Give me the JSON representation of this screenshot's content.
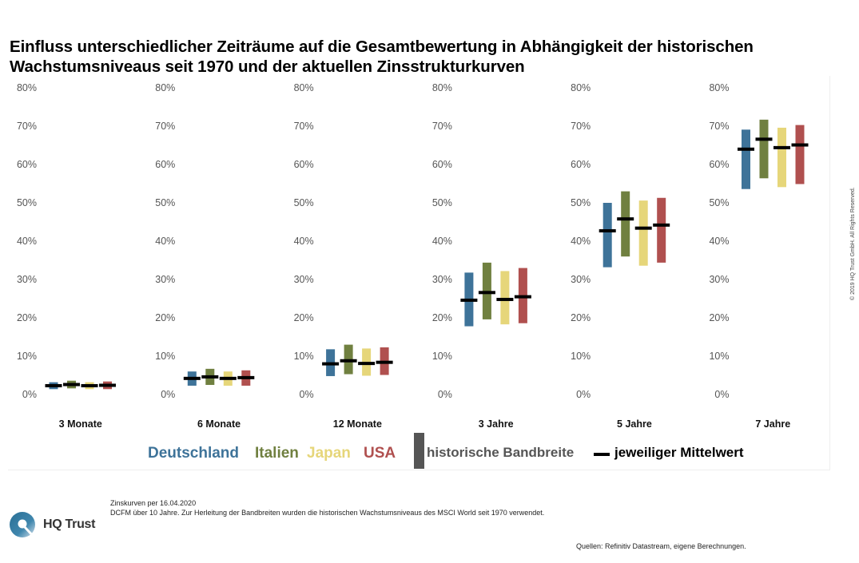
{
  "title": {
    "line1": "Einfluss unterschiedlicher Zeiträume auf die Gesamtbewertung in Abhängigkeit der historischen",
    "line2": "Wachstumsniveaus seit 1970 und der aktuellen Zinsstrukturkurven"
  },
  "colors": {
    "Deutschland": "#3e7399",
    "Italien": "#708040",
    "Japan": "#e6d67a",
    "USA": "#b0504f",
    "band_legend": "#555555",
    "mean": "#000000"
  },
  "chart_data": {
    "type": "range-bar",
    "title": "Einfluss unterschiedlicher Zeiträume auf die Gesamtbewertung in Abhängigkeit der historischen Wachstumsniveaus seit 1970 und der aktuellen Zinsstrukturkurven",
    "ylim": [
      0,
      80
    ],
    "y_ticks": [
      "0%",
      "10%",
      "20%",
      "30%",
      "40%",
      "50%",
      "60%",
      "70%",
      "80%"
    ],
    "y_tick_values": [
      0,
      10,
      20,
      30,
      40,
      50,
      60,
      70,
      80
    ],
    "grid": false,
    "series_names": [
      "Deutschland",
      "Italien",
      "Japan",
      "USA"
    ],
    "panels": [
      {
        "label": "3 Monate",
        "bars": [
          {
            "series": "Deutschland",
            "low": 1.4,
            "high": 3.2,
            "mean": 2.3
          },
          {
            "series": "Italien",
            "low": 1.6,
            "high": 3.6,
            "mean": 2.6
          },
          {
            "series": "Japan",
            "low": 1.4,
            "high": 3.2,
            "mean": 2.3
          },
          {
            "series": "USA",
            "low": 1.4,
            "high": 3.4,
            "mean": 2.4
          }
        ]
      },
      {
        "label": "6 Monate",
        "bars": [
          {
            "series": "Deutschland",
            "low": 2.3,
            "high": 6.0,
            "mean": 4.2
          },
          {
            "series": "Italien",
            "low": 2.5,
            "high": 6.7,
            "mean": 4.6
          },
          {
            "series": "Japan",
            "low": 2.3,
            "high": 6.0,
            "mean": 4.2
          },
          {
            "series": "USA",
            "low": 2.3,
            "high": 6.3,
            "mean": 4.4
          }
        ]
      },
      {
        "label": "12 Monate",
        "bars": [
          {
            "series": "Deutschland",
            "low": 4.8,
            "high": 11.8,
            "mean": 8.0
          },
          {
            "series": "Italien",
            "low": 5.3,
            "high": 13.0,
            "mean": 8.8
          },
          {
            "series": "Japan",
            "low": 4.9,
            "high": 12.0,
            "mean": 8.1
          },
          {
            "series": "USA",
            "low": 5.1,
            "high": 12.3,
            "mean": 8.4
          }
        ]
      },
      {
        "label": "3 Jahre",
        "bars": [
          {
            "series": "Deutschland",
            "low": 17.8,
            "high": 31.8,
            "mean": 24.6
          },
          {
            "series": "Italien",
            "low": 19.6,
            "high": 34.4,
            "mean": 26.6
          },
          {
            "series": "Japan",
            "low": 18.3,
            "high": 32.2,
            "mean": 24.8
          },
          {
            "series": "USA",
            "low": 18.6,
            "high": 33.0,
            "mean": 25.5
          }
        ]
      },
      {
        "label": "5 Jahre",
        "bars": [
          {
            "series": "Deutschland",
            "low": 33.2,
            "high": 50.0,
            "mean": 42.7
          },
          {
            "series": "Italien",
            "low": 36.0,
            "high": 53.0,
            "mean": 45.8
          },
          {
            "series": "Japan",
            "low": 33.6,
            "high": 50.6,
            "mean": 43.4
          },
          {
            "series": "USA",
            "low": 34.4,
            "high": 51.3,
            "mean": 44.2
          }
        ]
      },
      {
        "label": "7 Jahre",
        "bars": [
          {
            "series": "Deutschland",
            "low": 53.6,
            "high": 69.1,
            "mean": 64.0
          },
          {
            "series": "Italien",
            "low": 56.4,
            "high": 71.7,
            "mean": 66.6
          },
          {
            "series": "Japan",
            "low": 54.1,
            "high": 69.6,
            "mean": 64.4
          },
          {
            "series": "USA",
            "low": 54.9,
            "high": 70.3,
            "mean": 65.1
          }
        ]
      }
    ],
    "legend": {
      "position": "bottom",
      "entries": [
        "Deutschland",
        "Italien",
        "Japan",
        "USA",
        "historische Bandbreite",
        "jeweiliger Mittelwert"
      ]
    }
  },
  "footer": {
    "note1": "Zinskurven per 16.04.2020",
    "note2": "DCFM über 10 Jahre. Zur Herleitung der Bandbreiten wurden die historischen Wachstumsniveaus des MSCI World seit 1970 verwendet.",
    "sources": "Quellen: Refinitiv Datastream, eigene Berechnungen.",
    "copyright": "© 2019 HQ Trust GmbH. All Rights Reserved.",
    "logo_text": "HQ Trust"
  }
}
